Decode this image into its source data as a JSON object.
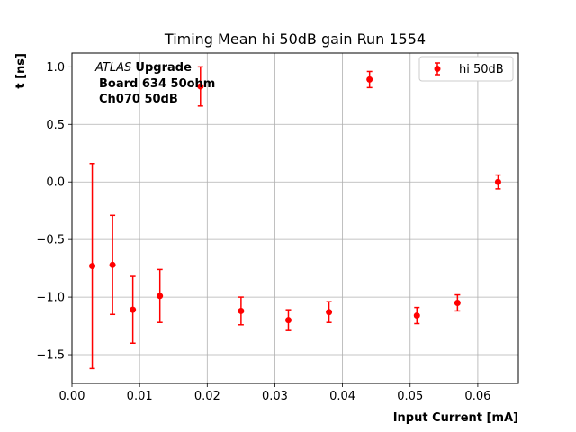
{
  "chart_data": {
    "type": "scatter",
    "title": "Timing Mean hi 50dB gain Run 1554",
    "xlabel": "Input Current [mA]",
    "ylabel": "t [ns]",
    "xlim": [
      0.0,
      0.066
    ],
    "ylim": [
      -1.75,
      1.12
    ],
    "x_ticks": [
      0.0,
      0.01,
      0.02,
      0.03,
      0.04,
      0.05,
      0.06
    ],
    "x_tick_labels": [
      "0.00",
      "0.01",
      "0.02",
      "0.03",
      "0.04",
      "0.05",
      "0.06"
    ],
    "y_ticks": [
      -1.5,
      -1.0,
      -0.5,
      0.0,
      0.5,
      1.0
    ],
    "y_tick_labels": [
      "−1.5",
      "−1.0",
      "−0.5",
      "0.0",
      "0.5",
      "1.0"
    ],
    "grid": true,
    "legend_position": "top-right",
    "annotation": {
      "atlas": "ATLAS",
      "upgrade": "Upgrade",
      "line2": "Board 634 50ohm",
      "line3": "Ch070 50dB"
    },
    "series": [
      {
        "name": "hi 50dB",
        "color": "#ff0000",
        "x": [
          0.003,
          0.006,
          0.009,
          0.013,
          0.019,
          0.025,
          0.032,
          0.038,
          0.044,
          0.051,
          0.057,
          0.063
        ],
        "y": [
          -0.73,
          -0.72,
          -1.11,
          -0.99,
          0.83,
          -1.12,
          -1.2,
          -1.13,
          0.89,
          -1.16,
          -1.05,
          0.0
        ],
        "err": [
          0.89,
          0.43,
          0.29,
          0.23,
          0.17,
          0.12,
          0.09,
          0.09,
          0.07,
          0.07,
          0.07,
          0.06
        ]
      }
    ]
  }
}
